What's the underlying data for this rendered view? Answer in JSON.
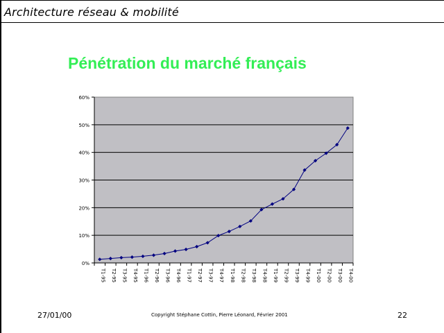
{
  "header": {
    "title": "Architecture réseau & mobilité"
  },
  "slide": {
    "title": "Pénétration du marché français"
  },
  "footer": {
    "date": "27/01/00",
    "copyright": "Copyright Stéphane Cottin, Pierre Léonard, Février 2001",
    "page": "22"
  },
  "chart_data": {
    "type": "line",
    "title": "",
    "xlabel": "",
    "ylabel": "",
    "ylim": [
      0,
      60
    ],
    "yticks": [
      "0%",
      "10%",
      "20%",
      "30%",
      "40%",
      "50%",
      "60%"
    ],
    "grid": true,
    "legend": "none",
    "colors": {
      "plot_bg": "#c0bfc4",
      "line": "#000080",
      "grid": "#000000"
    },
    "categories": [
      "T1-95",
      "T2-95",
      "T3-95",
      "T4-95",
      "T1-96",
      "T2-96",
      "T3-96",
      "T4-96",
      "T1-97",
      "T2-97",
      "T3-97",
      "T4-97",
      "T1-98",
      "T2-98",
      "T3-98",
      "T4-98",
      "T1-99",
      "T2-99",
      "T3-99",
      "T4-99",
      "T1-00",
      "T2-00",
      "T3-00",
      "T4-00"
    ],
    "series": [
      {
        "values": [
          1.3,
          1.6,
          1.9,
          2.1,
          2.4,
          2.8,
          3.4,
          4.3,
          4.9,
          5.9,
          7.3,
          9.9,
          11.4,
          13.2,
          15.2,
          19.3,
          21.3,
          23.2,
          26.6,
          33.6,
          37.0,
          39.7,
          42.8,
          48.8
        ]
      }
    ]
  }
}
